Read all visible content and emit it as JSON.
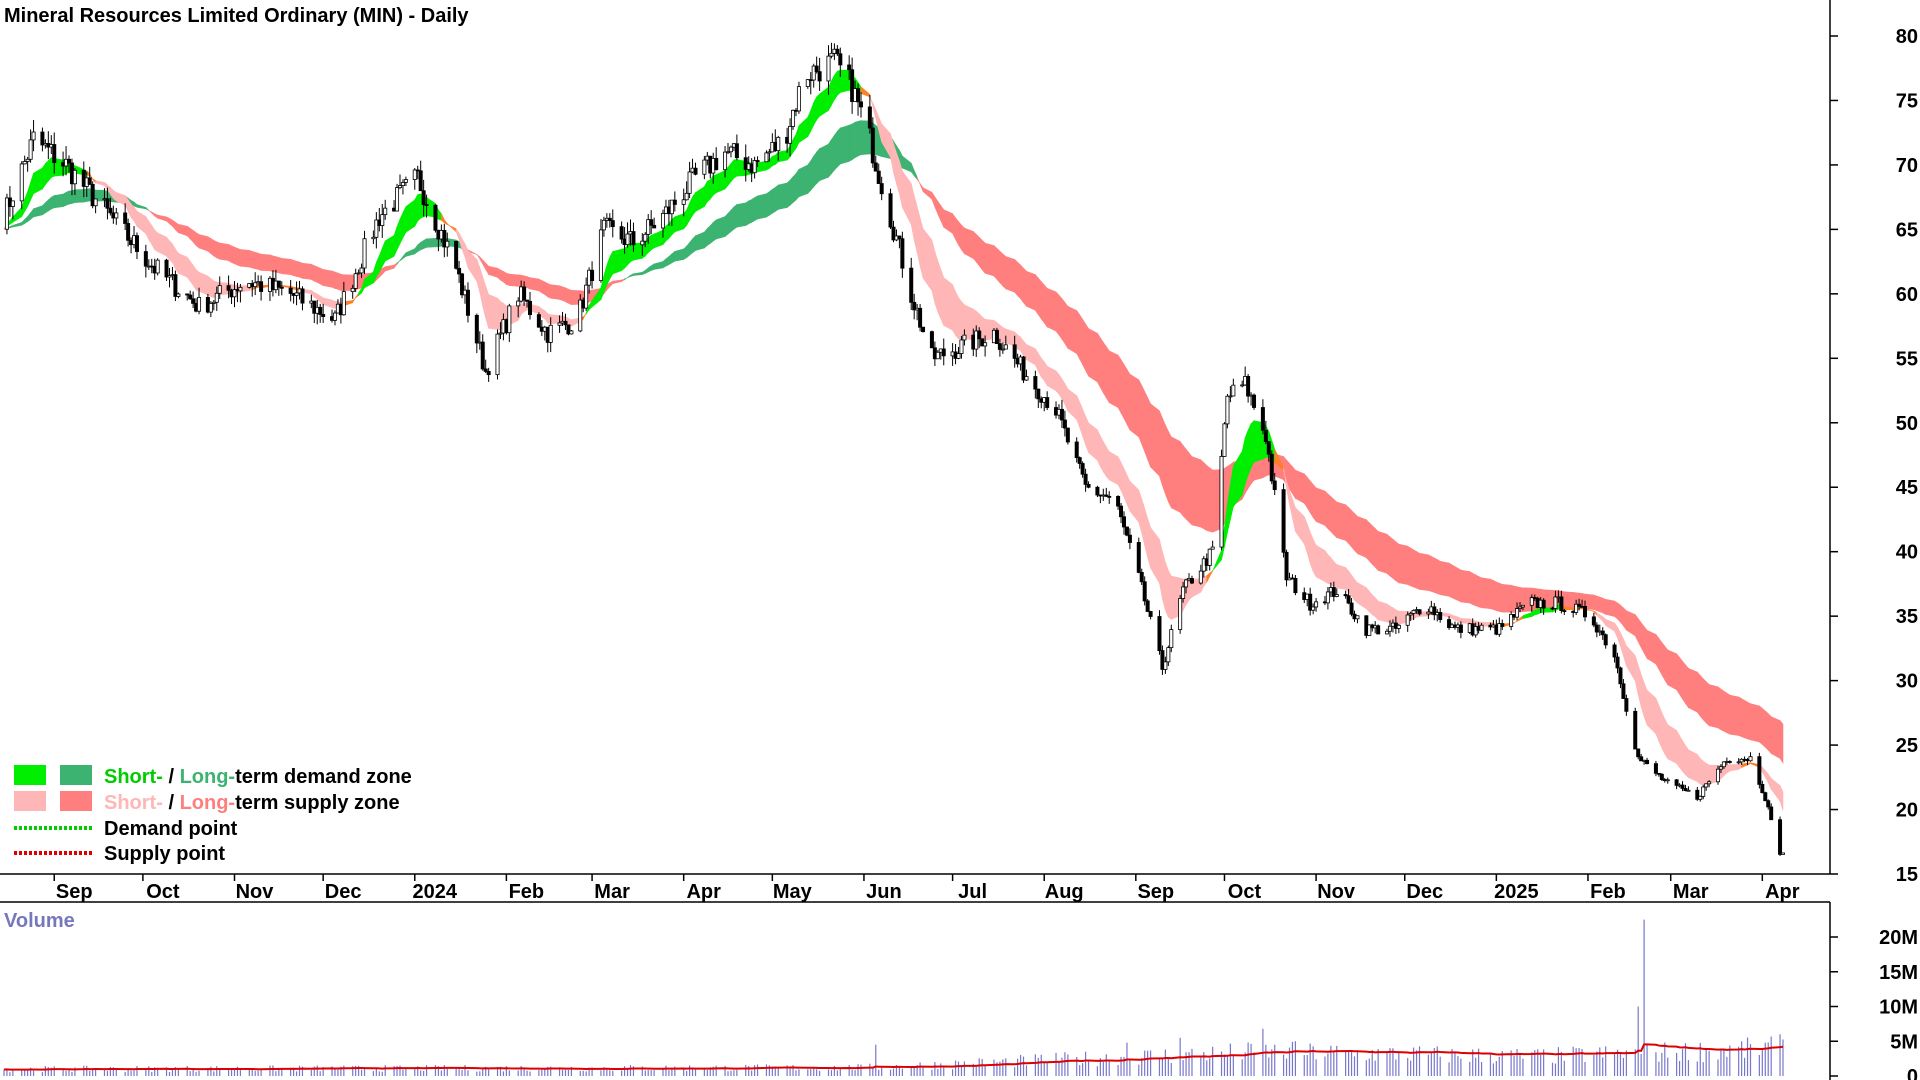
{
  "chart_data": [
    {
      "type": "candlestick",
      "title": "Mineral Resources Limited Ordinary (MIN) - Daily",
      "ylim": [
        15,
        82
      ],
      "y_ticks": [
        15,
        20,
        25,
        30,
        35,
        40,
        45,
        50,
        55,
        60,
        65,
        70,
        75,
        80
      ],
      "x_ticks": [
        "Sep",
        "Oct",
        "Nov",
        "Dec",
        "2024",
        "Feb",
        "Mar",
        "Apr",
        "May",
        "Jun",
        "Jul",
        "Aug",
        "Sep",
        "Oct",
        "Nov",
        "Dec",
        "2025",
        "Feb",
        "Mar",
        "Apr"
      ],
      "price_anchors": [
        [
          "2023-08-15",
          66
        ],
        [
          "2023-08-25",
          72
        ],
        [
          "2023-09-05",
          70
        ],
        [
          "2023-09-20",
          66
        ],
        [
          "2023-10-05",
          62
        ],
        [
          "2023-10-20",
          59
        ],
        [
          "2023-11-05",
          61
        ],
        [
          "2023-11-20",
          60
        ],
        [
          "2023-12-05",
          58
        ],
        [
          "2023-12-20",
          66
        ],
        [
          "2024-01-02",
          69
        ],
        [
          "2024-01-15",
          62
        ],
        [
          "2024-01-25",
          54
        ],
        [
          "2024-02-05",
          60
        ],
        [
          "2024-02-15",
          57
        ],
        [
          "2024-02-25",
          58
        ],
        [
          "2024-03-05",
          65
        ],
        [
          "2024-03-15",
          64
        ],
        [
          "2024-03-25",
          66
        ],
        [
          "2024-04-05",
          69
        ],
        [
          "2024-04-15",
          71
        ],
        [
          "2024-04-25",
          70
        ],
        [
          "2024-05-05",
          72
        ],
        [
          "2024-05-12",
          77
        ],
        [
          "2024-05-22",
          78
        ],
        [
          "2024-05-28",
          76
        ],
        [
          "2024-06-03",
          72
        ],
        [
          "2024-06-10",
          66
        ],
        [
          "2024-06-17",
          60
        ],
        [
          "2024-06-24",
          55
        ],
        [
          "2024-07-05",
          56
        ],
        [
          "2024-07-15",
          57
        ],
        [
          "2024-07-25",
          54
        ],
        [
          "2024-08-05",
          51
        ],
        [
          "2024-08-15",
          45
        ],
        [
          "2024-08-25",
          44
        ],
        [
          "2024-09-02",
          38
        ],
        [
          "2024-09-10",
          31
        ],
        [
          "2024-09-17",
          37
        ],
        [
          "2024-09-27",
          40
        ],
        [
          "2024-10-02",
          52
        ],
        [
          "2024-10-08",
          53
        ],
        [
          "2024-10-15",
          49
        ],
        [
          "2024-10-22",
          38
        ],
        [
          "2024-10-30",
          36
        ],
        [
          "2024-11-08",
          37
        ],
        [
          "2024-11-18",
          34
        ],
        [
          "2024-11-28",
          34
        ],
        [
          "2024-12-08",
          36
        ],
        [
          "2024-12-18",
          34
        ],
        [
          "2025-01-02",
          34
        ],
        [
          "2025-01-12",
          36
        ],
        [
          "2025-01-22",
          36
        ],
        [
          "2025-02-02",
          35
        ],
        [
          "2025-02-10",
          32
        ],
        [
          "2025-02-18",
          24
        ],
        [
          "2025-02-28",
          22
        ],
        [
          "2025-03-10",
          21
        ],
        [
          "2025-03-20",
          24
        ],
        [
          "2025-03-28",
          24
        ],
        [
          "2025-04-02",
          21
        ],
        [
          "2025-04-06",
          17
        ],
        [
          "2025-04-08",
          16.5
        ]
      ]
    },
    {
      "type": "bar",
      "title": "Volume",
      "ylim": [
        0,
        25000000
      ],
      "y_ticks": [
        "0",
        "5M",
        "10M",
        "15M",
        "20M"
      ],
      "volume_anchors": [
        [
          "2023-08-15",
          1000000
        ],
        [
          "2024-06-01",
          1200000
        ],
        [
          "2024-08-15",
          2500000
        ],
        [
          "2024-10-15",
          3500000
        ],
        [
          "2025-01-15",
          2800000
        ],
        [
          "2025-04-08",
          4000000
        ]
      ],
      "volume_spikes": [
        [
          "2024-06-05",
          4500000
        ],
        [
          "2024-08-29",
          4800000
        ],
        [
          "2024-09-16",
          5500000
        ],
        [
          "2024-10-14",
          6800000
        ],
        [
          "2024-10-25",
          5000000
        ],
        [
          "2025-02-18",
          10000000
        ],
        [
          "2025-02-20",
          22500000
        ],
        [
          "2025-04-07",
          6000000
        ]
      ]
    }
  ],
  "legend": {
    "line1_short": "Short-",
    "line1_sep": " / ",
    "line1_long": "Long-",
    "line1_rest": "term demand zone",
    "line2_short": "Short-",
    "line2_sep": " / ",
    "line2_long": "Long-",
    "line2_rest": "term supply zone",
    "line3": "Demand point",
    "line4": "Supply point"
  },
  "colors": {
    "short_demand": "#00ee00",
    "long_demand": "#3cb371",
    "short_supply": "#ffb6b6",
    "long_supply": "#ff7f7f",
    "transition": "#ff7f27",
    "demand_point": "#00cc00",
    "supply_point": "#dd0000",
    "volume_bar": "#7777cc",
    "volume_ma": "#dd0000"
  }
}
